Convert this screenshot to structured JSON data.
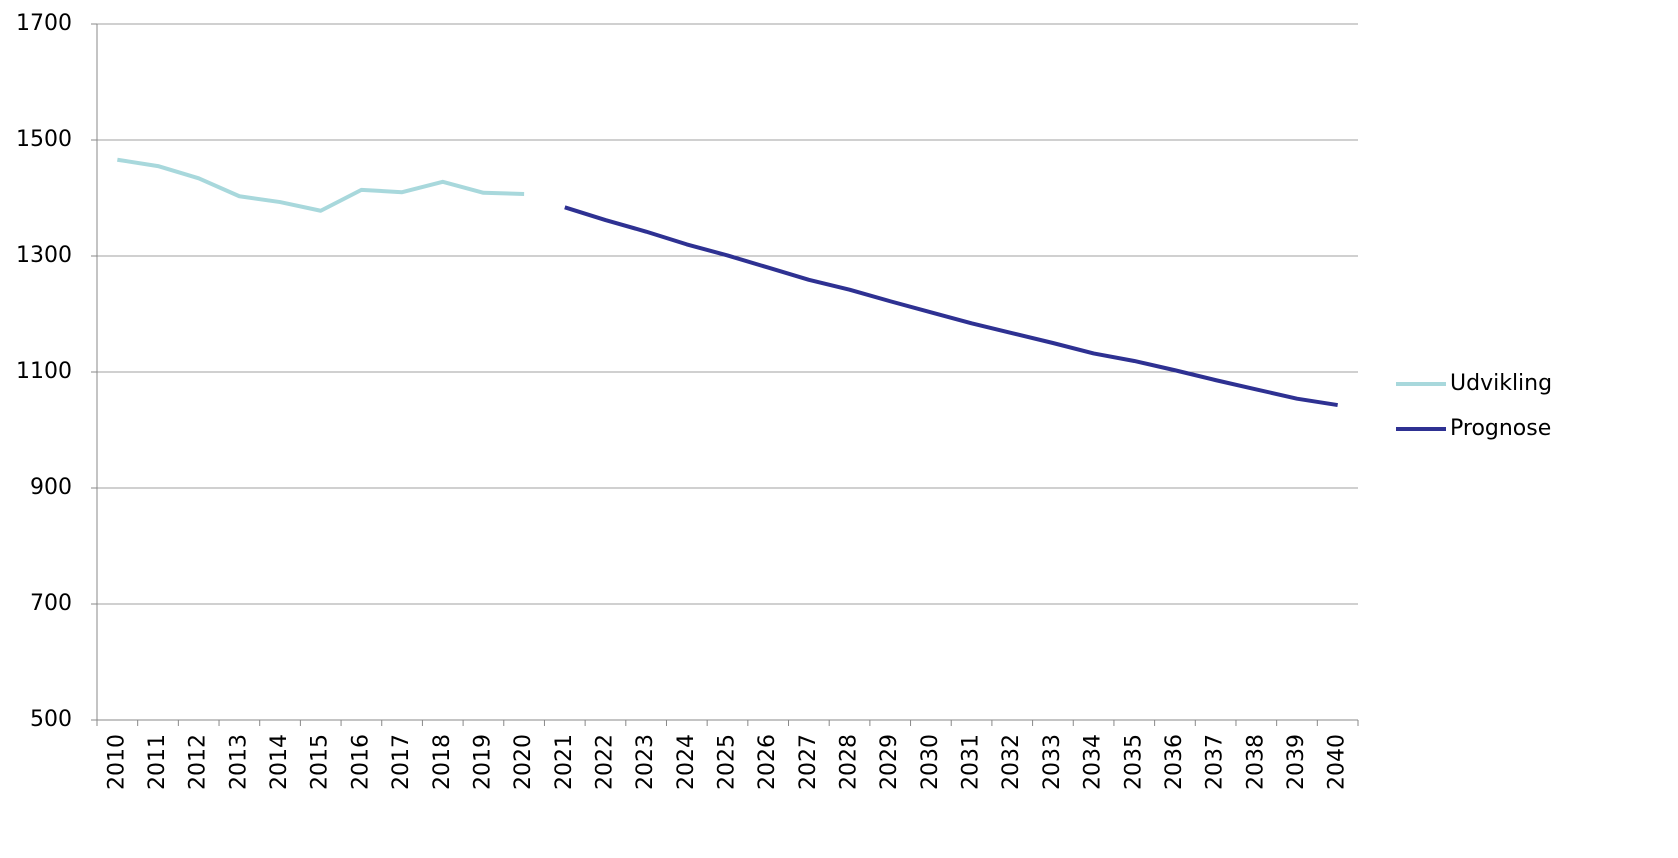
{
  "chart_data": {
    "type": "line",
    "categories": [
      "2010",
      "2011",
      "2012",
      "2013",
      "2014",
      "2015",
      "2016",
      "2017",
      "2018",
      "2019",
      "2020",
      "2021",
      "2022",
      "2023",
      "2024",
      "2025",
      "2026",
      "2027",
      "2028",
      "2029",
      "2030",
      "2031",
      "2032",
      "2033",
      "2034",
      "2035",
      "2036",
      "2037",
      "2038",
      "2039",
      "2040"
    ],
    "series": [
      {
        "name": "Udvikling",
        "color": "#a8d8dc",
        "values": [
          1466,
          1455,
          1434,
          1403,
          1393,
          1378,
          1414,
          1410,
          1428,
          1409,
          1407,
          null,
          null,
          null,
          null,
          null,
          null,
          null,
          null,
          null,
          null,
          null,
          null,
          null,
          null,
          null,
          null,
          null,
          null,
          null,
          null
        ]
      },
      {
        "name": "Prognose",
        "color": "#2e3192",
        "values": [
          null,
          null,
          null,
          null,
          null,
          null,
          null,
          null,
          null,
          null,
          null,
          1384,
          1362,
          1342,
          1320,
          1301,
          1280,
          1259,
          1242,
          1222,
          1203,
          1184,
          1167,
          1150,
          1132,
          1119,
          1103,
          1086,
          1070,
          1054,
          1043
        ]
      }
    ],
    "ylim": [
      500,
      1700
    ],
    "yticks": [
      500,
      700,
      900,
      1100,
      1300,
      1500,
      1700
    ],
    "grid": true,
    "legend": "right"
  }
}
